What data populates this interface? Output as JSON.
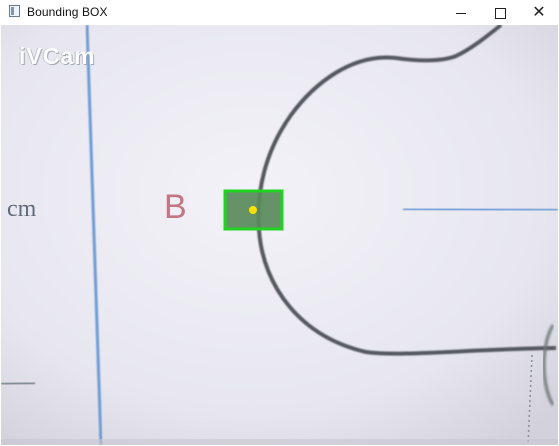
{
  "window": {
    "title": "Bounding BOX",
    "controls": {
      "minimize_icon": "minimize-icon",
      "maximize_icon": "maximize-icon",
      "close_icon": "close-icon"
    }
  },
  "camera": {
    "watermark": "iVCam",
    "letter": "B",
    "unit": "cm",
    "colors": {
      "box_stroke": "#21d321",
      "box_fill": "#5a8a5a",
      "center_dot": "#ffe000",
      "line": "#55585f",
      "blue_line": "#6d9bd4"
    }
  }
}
